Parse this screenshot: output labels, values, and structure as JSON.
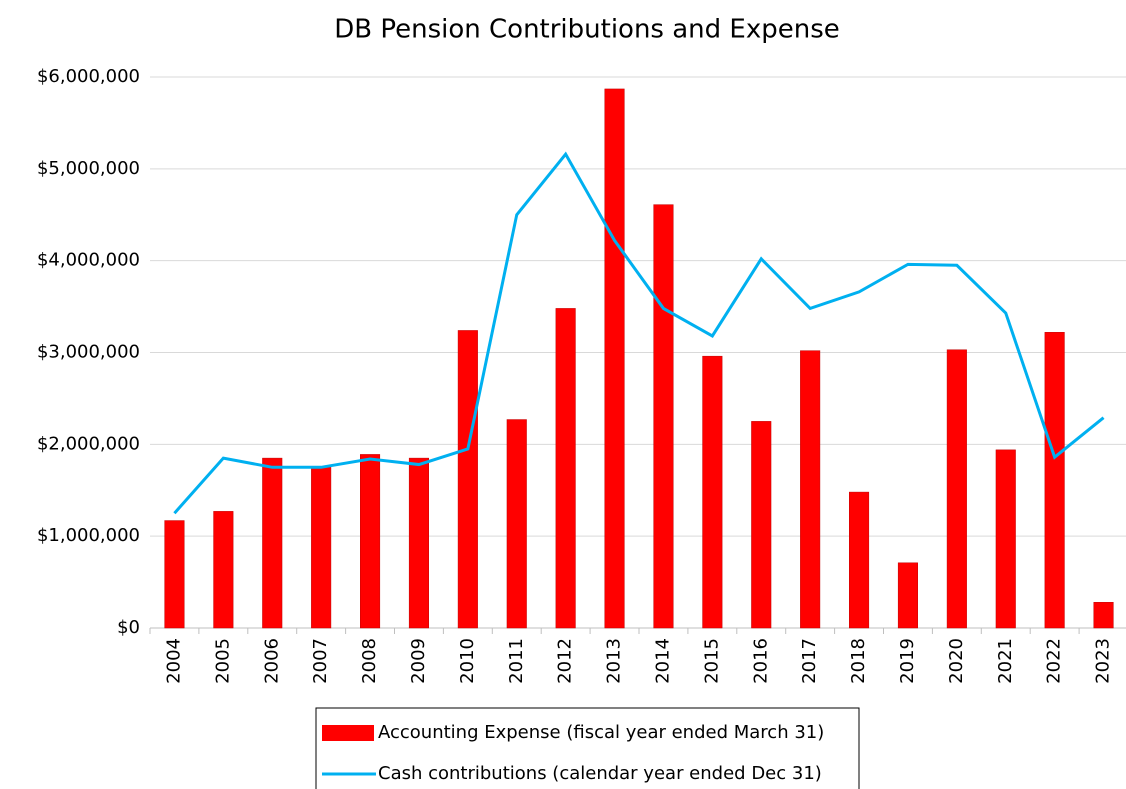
{
  "chart_data": {
    "type": "bar_line",
    "title": "DB Pension Contributions and Expense",
    "categories": [
      "2004",
      "2005",
      "2006",
      "2007",
      "2008",
      "2009",
      "2010",
      "2011",
      "2012",
      "2013",
      "2014",
      "2015",
      "2016",
      "2017",
      "2018",
      "2019",
      "2020",
      "2021",
      "2022",
      "2023"
    ],
    "series": [
      {
        "name": "Accounting Expense (fiscal year ended March 31)",
        "type": "bar",
        "color": "#ff0000",
        "values": [
          1170000,
          1270000,
          1850000,
          1750000,
          1890000,
          1850000,
          3240000,
          2270000,
          3480000,
          5870000,
          4610000,
          2960000,
          2250000,
          3020000,
          1480000,
          710000,
          3030000,
          1940000,
          3220000,
          280000
        ]
      },
      {
        "name": "Cash contributions (calendar year ended Dec 31)",
        "type": "line",
        "color": "#00b0f0",
        "values": [
          1250000,
          1850000,
          1750000,
          1750000,
          1840000,
          1780000,
          1950000,
          4500000,
          5160000,
          4220000,
          3480000,
          3180000,
          4020000,
          3480000,
          3660000,
          3960000,
          3950000,
          3430000,
          1860000,
          2290000
        ]
      }
    ],
    "ylim": [
      0,
      6000000
    ],
    "yticks": [
      {
        "value": 0,
        "label": "$0"
      },
      {
        "value": 1000000,
        "label": "$1,000,000"
      },
      {
        "value": 2000000,
        "label": "$2,000,000"
      },
      {
        "value": 3000000,
        "label": "$3,000,000"
      },
      {
        "value": 4000000,
        "label": "$4,000,000"
      },
      {
        "value": 5000000,
        "label": "$5,000,000"
      },
      {
        "value": 6000000,
        "label": "$6,000,000"
      }
    ],
    "grid": true,
    "legend": "bottom"
  }
}
